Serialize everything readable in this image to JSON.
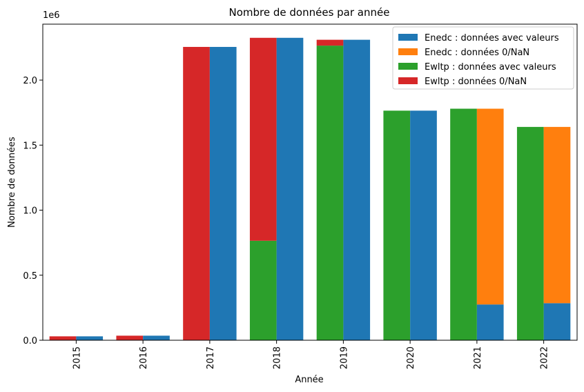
{
  "chart_data": {
    "type": "bar",
    "title": "Nombre de données par année",
    "xlabel": "Année",
    "ylabel": "Nombre de données",
    "y_offset_label": "1e6",
    "ylim": [
      0,
      2.43
    ],
    "yticks": [
      "0.0",
      "0.5",
      "1.0",
      "1.5",
      "2.0"
    ],
    "ytick_values": [
      0,
      0.5,
      1.0,
      1.5,
      2.0
    ],
    "categories": [
      "2015",
      "2016",
      "2017",
      "2018",
      "2019",
      "2020",
      "2021",
      "2022"
    ],
    "groups": [
      {
        "name": "Ewltp",
        "stack": [
          {
            "name": "Ewltp : données avec valeurs",
            "color": "#2ca02c",
            "values": [
              0,
              0,
              0,
              0.765,
              2.265,
              1.765,
              1.78,
              1.64
            ]
          },
          {
            "name": "Ewltp : données 0/NaN",
            "color": "#d62728",
            "values": [
              0.03,
              0.035,
              2.255,
              1.56,
              0.045,
              0,
              0,
              0
            ]
          }
        ]
      },
      {
        "name": "Enedc",
        "stack": [
          {
            "name": "Enedc : données avec valeurs",
            "color": "#1f77b4",
            "values": [
              0.03,
              0.035,
              2.255,
              2.325,
              2.31,
              1.765,
              0.275,
              0.285
            ]
          },
          {
            "name": "Enedc : données 0/NaN",
            "color": "#ff7f0e",
            "values": [
              0,
              0,
              0,
              0,
              0,
              0,
              1.505,
              1.355
            ]
          }
        ]
      }
    ],
    "legend": {
      "position": "top-right",
      "entries": [
        {
          "label": "Enedc : données avec valeurs",
          "color": "#1f77b4"
        },
        {
          "label": "Enedc : données 0/NaN",
          "color": "#ff7f0e"
        },
        {
          "label": "Ewltp : données avec valeurs",
          "color": "#2ca02c"
        },
        {
          "label": "Ewltp : données 0/NaN",
          "color": "#d62728"
        }
      ]
    },
    "grid": false
  }
}
